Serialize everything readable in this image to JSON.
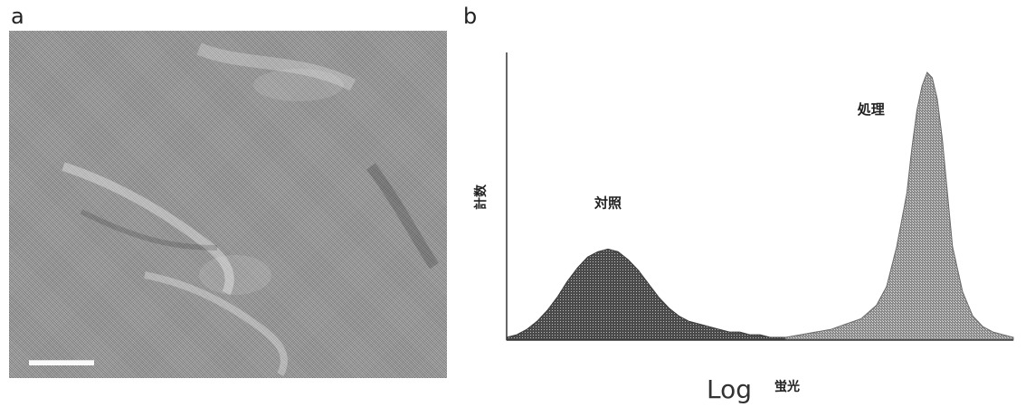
{
  "panels": {
    "a": {
      "label": "a"
    },
    "b": {
      "label": "b"
    }
  },
  "chart_data": {
    "type": "area",
    "ylabel": "計数",
    "xlabel_log": "Log",
    "xlabel_unit": "蛍光",
    "xscale": "log",
    "grid": false,
    "xlim": [
      0,
      100
    ],
    "ylim": [
      0,
      100
    ],
    "series": [
      {
        "name": "対照",
        "color": "#3a3a3a",
        "x": [
          0,
          2,
          4,
          6,
          8,
          10,
          12,
          14,
          16,
          18,
          20,
          22,
          24,
          26,
          28,
          30,
          32,
          34,
          36,
          38,
          40,
          42,
          44,
          46,
          48,
          50,
          52,
          54,
          56,
          58,
          60
        ],
        "values": [
          1,
          2,
          4,
          7,
          11,
          16,
          22,
          27,
          31,
          33,
          34,
          33,
          30,
          26,
          21,
          16,
          12,
          9,
          7,
          6,
          5,
          4,
          3,
          3,
          2,
          2,
          1,
          1,
          1,
          0,
          0
        ]
      },
      {
        "name": "処理",
        "color": "#6a6a6a",
        "x": [
          55,
          58,
          61,
          64,
          67,
          70,
          73,
          75,
          77,
          79,
          80,
          81,
          82,
          83,
          84,
          85,
          86,
          87,
          88,
          90,
          92,
          94,
          96,
          98,
          100
        ],
        "values": [
          1,
          2,
          3,
          4,
          6,
          8,
          13,
          20,
          35,
          55,
          72,
          86,
          95,
          100,
          98,
          90,
          75,
          55,
          35,
          18,
          9,
          5,
          3,
          2,
          1
        ]
      }
    ]
  }
}
